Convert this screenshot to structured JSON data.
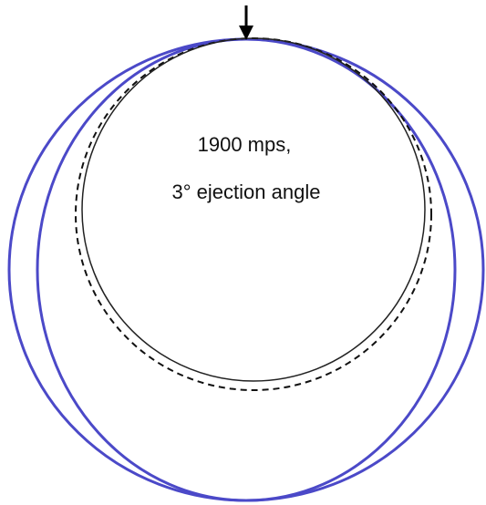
{
  "annotation": {
    "line1": "1900 mps,",
    "line2": "3° ejection angle"
  }
}
